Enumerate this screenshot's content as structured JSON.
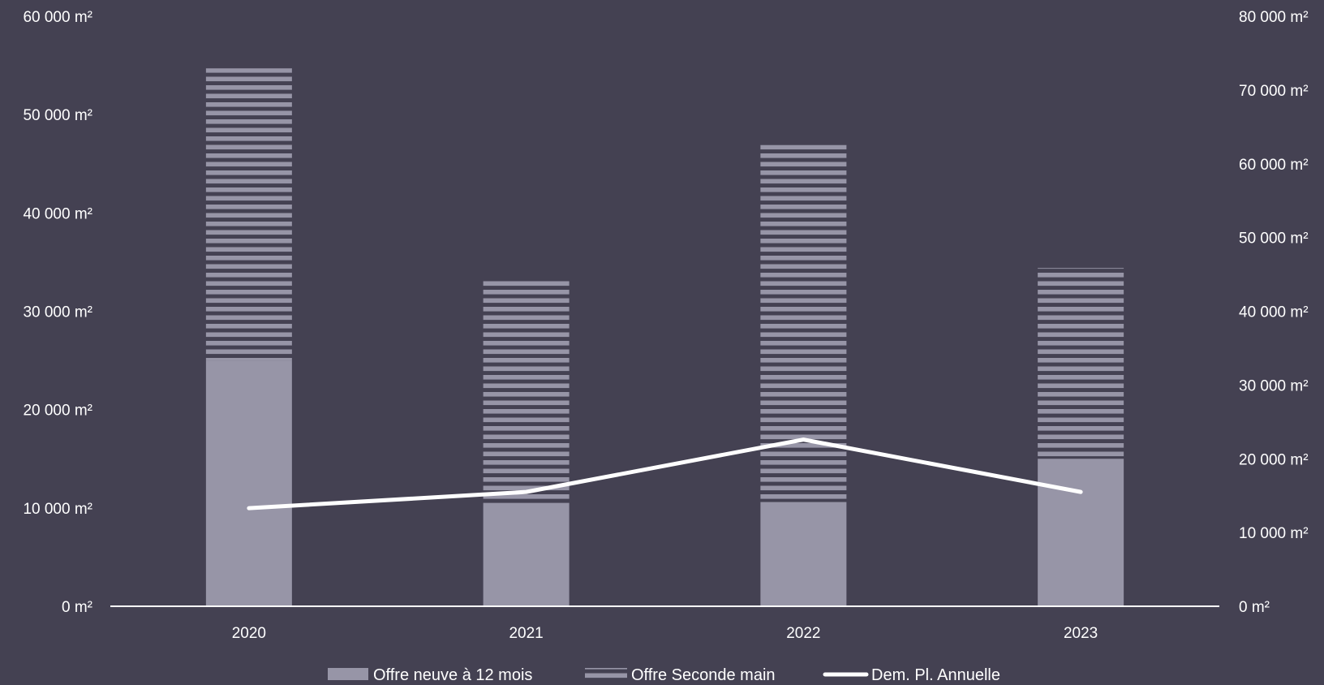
{
  "chart_data": {
    "type": "bar",
    "categories": [
      "2020",
      "2021",
      "2022",
      "2023"
    ],
    "series": [
      {
        "name": "Offre neuve à 12 mois",
        "kind": "stacked-bar",
        "axis": "left",
        "pattern": "solid",
        "color": "#9795A7",
        "values": [
          25000,
          10500,
          10600,
          15000
        ]
      },
      {
        "name": "Offre Seconde main",
        "kind": "stacked-bar",
        "axis": "left",
        "pattern": "horizontal-stripes",
        "color": "#9795A7",
        "values": [
          29700,
          22900,
          36300,
          19400
        ]
      },
      {
        "name": "Dem. Pl. Annuelle",
        "kind": "line",
        "axis": "right",
        "color": "#FFFFFF",
        "values": [
          13300,
          15500,
          22600,
          15500
        ]
      }
    ],
    "y_left": {
      "min": 0,
      "max": 60000,
      "step": 10000,
      "ticks": [
        "0 m²",
        "10 000 m²",
        "20 000 m²",
        "30 000 m²",
        "40 000 m²",
        "50 000 m²",
        "60 000 m²"
      ]
    },
    "y_right": {
      "min": 0,
      "max": 80000,
      "step": 10000,
      "ticks": [
        "0 m²",
        "10 000 m²",
        "20 000 m²",
        "30 000 m²",
        "40 000 m²",
        "50 000 m²",
        "60 000 m²",
        "70 000 m²",
        "80 000 m²"
      ]
    },
    "grid": false,
    "legend_position": "bottom",
    "title": "",
    "xlabel": "",
    "ylabel": ""
  },
  "colors": {
    "background": "#444152",
    "axis": "#FFFFFF",
    "text": "#FFFFFF"
  }
}
